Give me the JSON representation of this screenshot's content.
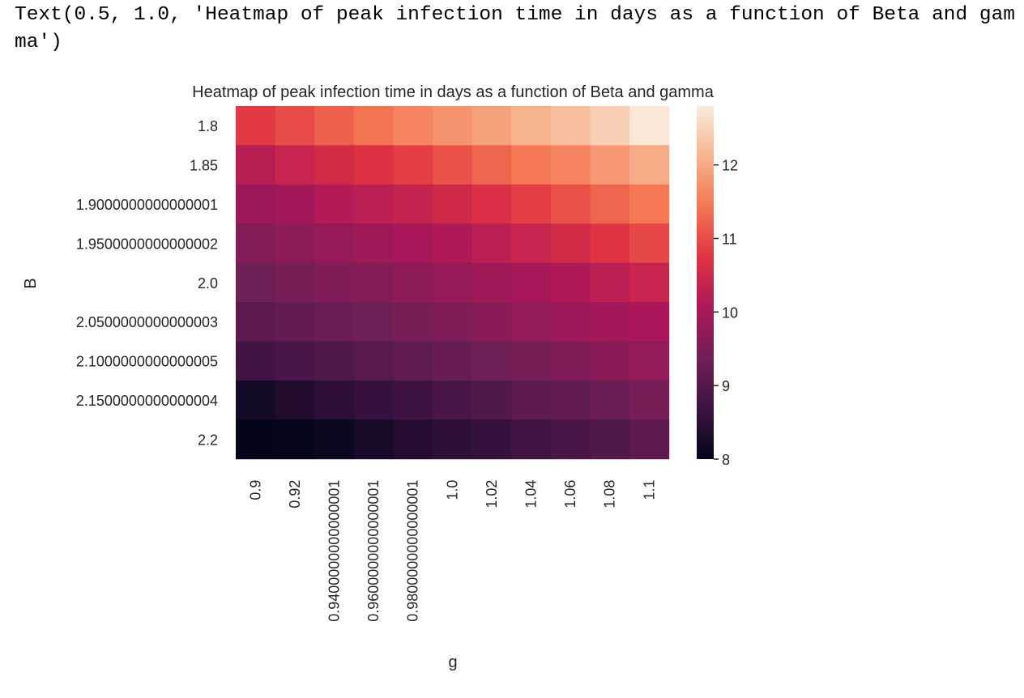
{
  "output_text": "Text(0.5, 1.0, 'Heatmap of peak infection time in days as a function of Beta and gamma')",
  "chart_data": {
    "type": "heatmap",
    "title": "Heatmap of peak infection time in days as a function of Beta and gamma",
    "xlabel": "g",
    "ylabel": "B",
    "x_categories": [
      "0.9",
      "0.92",
      "0.9400000000000001",
      "0.9600000000000001",
      "0.9800000000000001",
      "1.0",
      "1.02",
      "1.04",
      "1.06",
      "1.08",
      "1.1"
    ],
    "y_categories": [
      "1.8",
      "1.85",
      "1.9000000000000001",
      "1.9500000000000002",
      "2.0",
      "2.0500000000000003",
      "2.1000000000000005",
      "2.1500000000000004",
      "2.2"
    ],
    "values": [
      [
        10.8,
        11.0,
        11.2,
        11.4,
        11.6,
        11.75,
        11.9,
        12.1,
        12.25,
        12.45,
        12.75
      ],
      [
        10.2,
        10.4,
        10.55,
        10.7,
        10.85,
        11.05,
        11.25,
        11.45,
        11.6,
        11.8,
        12.0
      ],
      [
        9.85,
        9.95,
        10.15,
        10.25,
        10.35,
        10.5,
        10.65,
        10.85,
        11.05,
        11.25,
        11.45
      ],
      [
        9.6,
        9.7,
        9.8,
        9.9,
        10.0,
        10.1,
        10.25,
        10.4,
        10.55,
        10.75,
        10.95
      ],
      [
        9.35,
        9.45,
        9.55,
        9.6,
        9.7,
        9.8,
        9.9,
        10.0,
        10.1,
        10.25,
        10.4
      ],
      [
        9.1,
        9.2,
        9.3,
        9.35,
        9.45,
        9.55,
        9.65,
        9.75,
        9.85,
        9.95,
        10.05
      ],
      [
        8.75,
        8.85,
        8.95,
        9.05,
        9.15,
        9.25,
        9.35,
        9.45,
        9.55,
        9.65,
        9.75
      ],
      [
        8.2,
        8.35,
        8.5,
        8.6,
        8.7,
        8.85,
        8.95,
        9.1,
        9.2,
        9.3,
        9.45
      ],
      [
        8.0,
        8.02,
        8.1,
        8.25,
        8.4,
        8.5,
        8.6,
        8.75,
        8.85,
        8.95,
        9.1
      ]
    ],
    "colorbar": {
      "min": 8.0,
      "max": 12.8,
      "ticks": [
        8,
        9,
        10,
        11,
        12
      ]
    },
    "colormap": "rocket",
    "colormap_stops": [
      "#03051a",
      "#3d1342",
      "#701f57",
      "#ad1759",
      "#e13342",
      "#f37651",
      "#f6b48f",
      "#faebdd"
    ],
    "grid": false,
    "colorbar_placement": "right"
  }
}
